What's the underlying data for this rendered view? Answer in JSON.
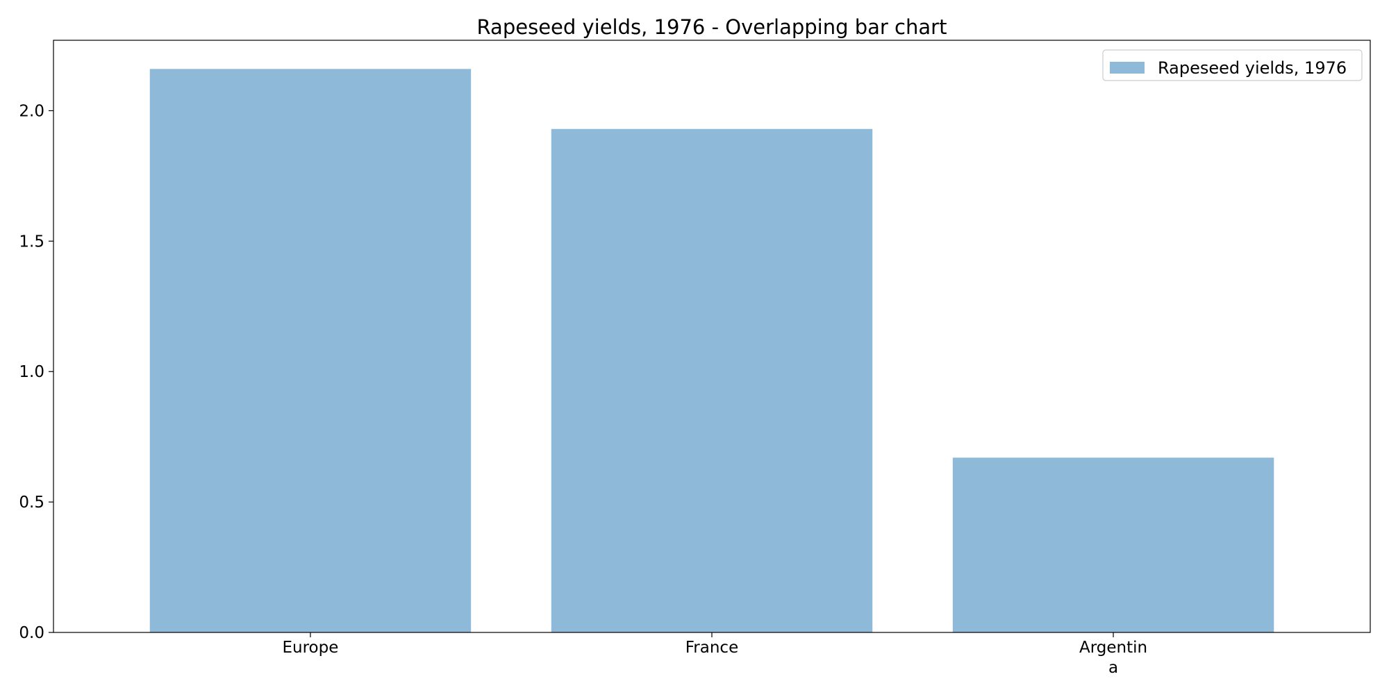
{
  "chart_data": {
    "type": "bar",
    "title": "Rapeseed yields, 1976 - Overlapping bar chart",
    "xlabel": "",
    "ylabel": "",
    "categories": [
      [
        "Europe"
      ],
      [
        "France"
      ],
      [
        "Argentin",
        "a"
      ]
    ],
    "series": [
      {
        "name": "Rapeseed yields, 1976",
        "values": [
          2.16,
          1.93,
          0.67
        ],
        "color": "#8fb9d8"
      }
    ],
    "ylim": [
      0,
      2.27
    ],
    "yticks": [
      0.0,
      0.5,
      1.0,
      1.5,
      2.0
    ],
    "ytick_labels": [
      "0.0",
      "0.5",
      "1.0",
      "1.5",
      "2.0"
    ],
    "grid": false,
    "legend_position": "top-right"
  }
}
